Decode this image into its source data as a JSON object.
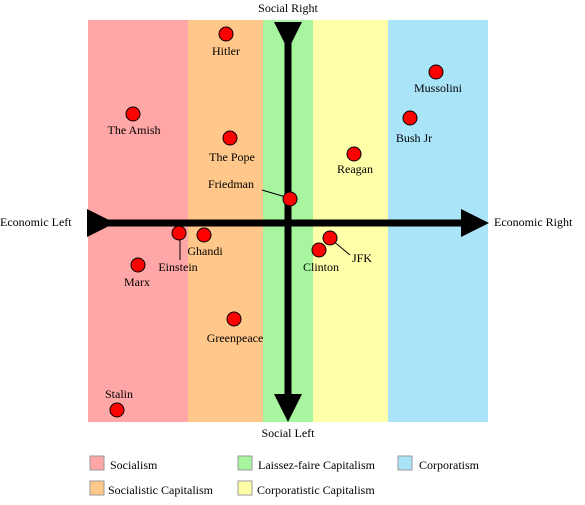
{
  "axes": {
    "top": "Social Right",
    "bottom": "Social Left",
    "left": "Economic Left",
    "right": "Economic Right"
  },
  "bands": [
    {
      "name": "Socialism",
      "color": "#ffa6a6"
    },
    {
      "name": "Socialistic Capitalism",
      "color": "#ffc78a"
    },
    {
      "name": "Laissez-faire Capitalism",
      "color": "#a8f5a0"
    },
    {
      "name": "Corporatistic Capitalism",
      "color": "#ffffaa"
    },
    {
      "name": "Corporatism",
      "color": "#aae4f8"
    }
  ],
  "point_color": "#ff0000",
  "people": [
    {
      "name": "Hitler"
    },
    {
      "name": "Mussolini"
    },
    {
      "name": "The Amish"
    },
    {
      "name": "Bush Jr"
    },
    {
      "name": "The Pope"
    },
    {
      "name": "Reagan"
    },
    {
      "name": "Friedman"
    },
    {
      "name": "Ghandi"
    },
    {
      "name": "Einstein"
    },
    {
      "name": "JFK"
    },
    {
      "name": "Clinton"
    },
    {
      "name": "Marx"
    },
    {
      "name": "Greenpeace"
    },
    {
      "name": "Stalin"
    }
  ]
}
